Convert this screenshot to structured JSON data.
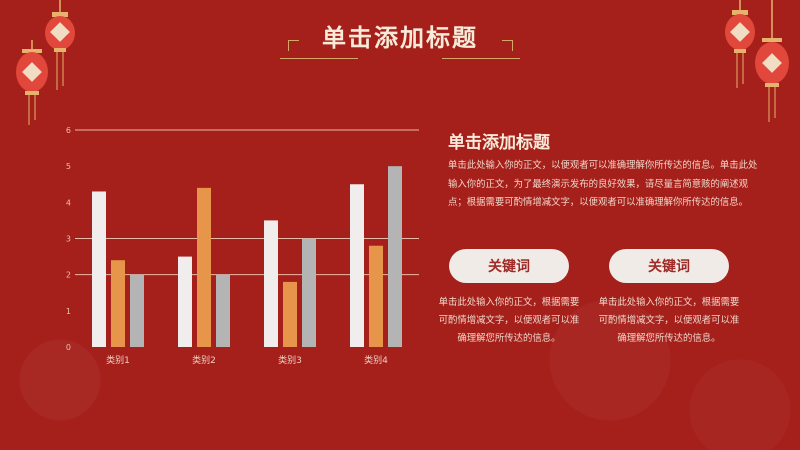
{
  "header": {
    "title": "单击添加标题"
  },
  "side": {
    "title": "单击添加标题",
    "body": "单击此处输入你的正文，以便观者可以准确理解你所传达的信息。单击此处输入你的正文，为了最终演示发布的良好效果，请尽量言简意赅的阐述观点；根据需要可酌情增减文字，以便观者可以准确理解你所传达的信息。"
  },
  "keywords": [
    {
      "label": "关键词",
      "text": "单击此处输入你的正文，根据需要可酌情增减文字，以便观者可以准确理解您所传达的信息。"
    },
    {
      "label": "关键词",
      "text": "单击此处输入你的正文，根据需要可酌情增减文字，以便观者可以准确理解您所传达的信息。"
    }
  ],
  "chart_data": {
    "type": "bar",
    "categories": [
      "类别1",
      "类别2",
      "类别3",
      "类别4"
    ],
    "series": [
      {
        "values": [
          4.3,
          2.5,
          3.5,
          4.5
        ],
        "color": "#f1eded"
      },
      {
        "values": [
          2.4,
          4.4,
          1.8,
          2.8
        ],
        "color": "#e7954a"
      },
      {
        "values": [
          2.0,
          2.0,
          3.0,
          5.0
        ],
        "color": "#b4b4b4"
      }
    ],
    "ylim": [
      0,
      6
    ],
    "yticks": [
      "0",
      "1",
      "2",
      "3",
      "4",
      "5",
      "6"
    ],
    "grid_values": [
      2,
      3,
      6
    ]
  },
  "colors": {
    "background": "#a51f1b",
    "gridline": "#e9b9a7",
    "accent": "#d7a768"
  }
}
